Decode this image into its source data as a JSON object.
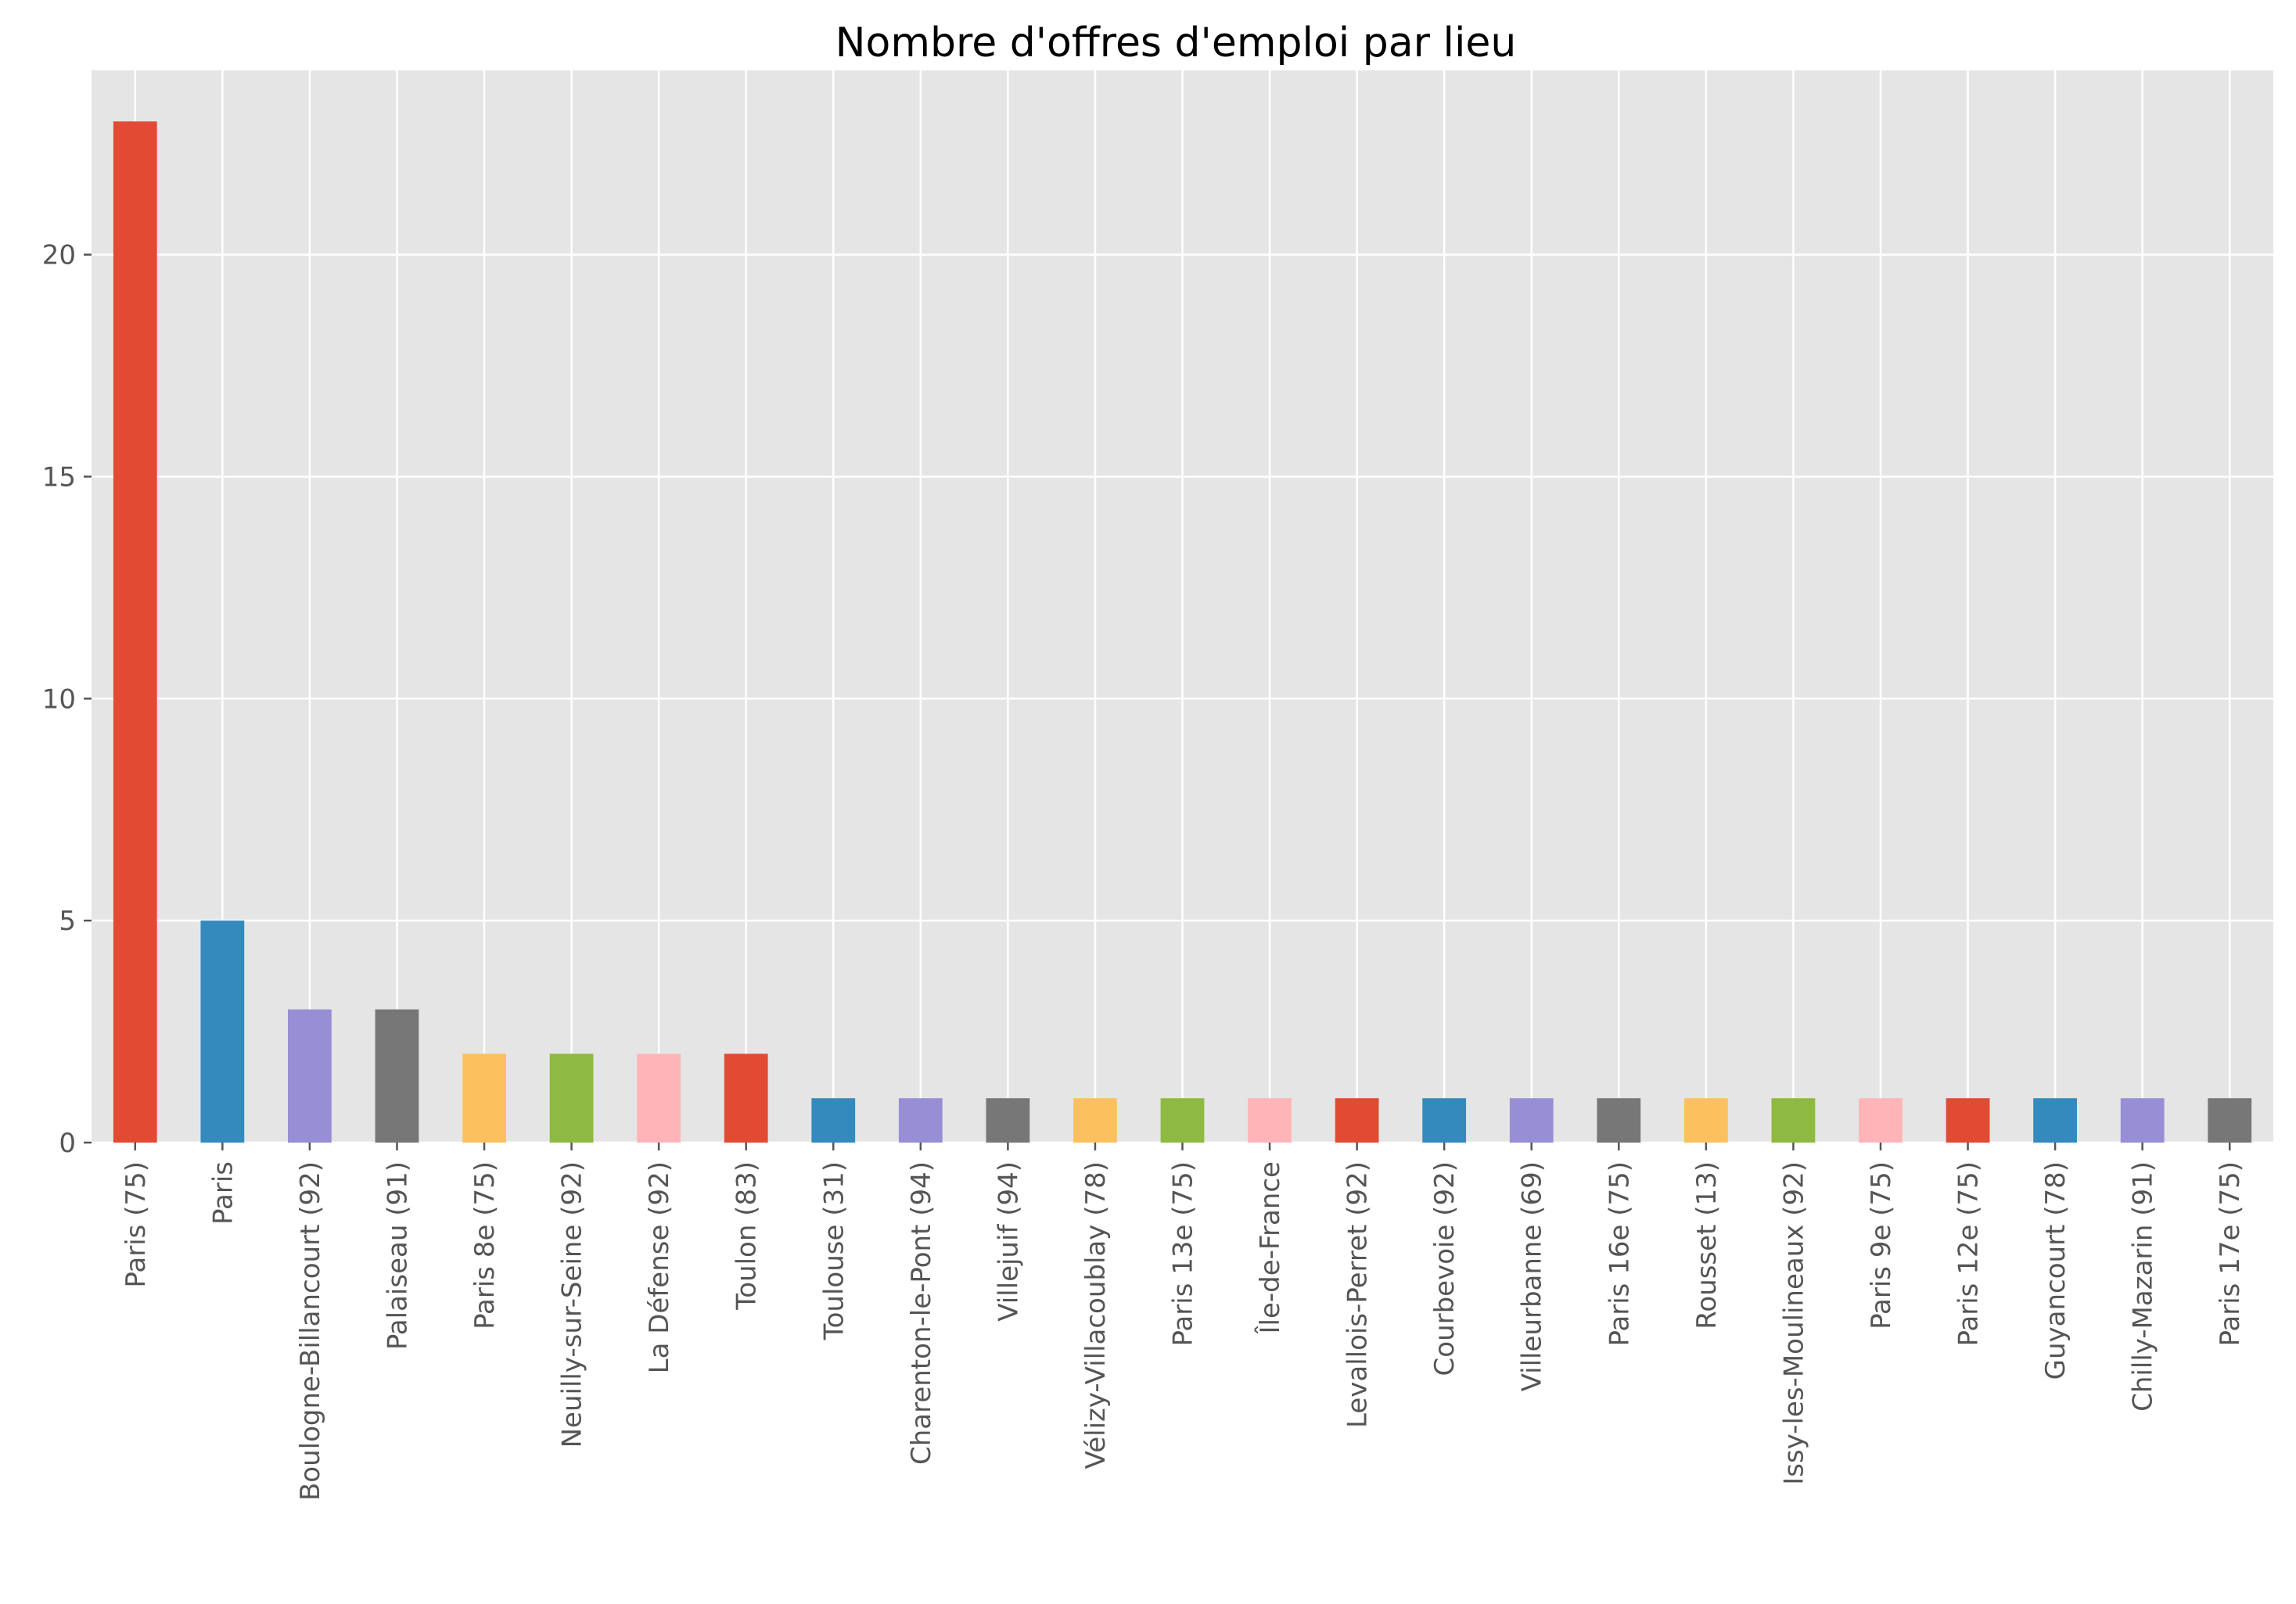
{
  "chart_data": {
    "type": "bar",
    "title": "Nombre d'offres d'emploi par lieu",
    "xlabel": "",
    "ylabel": "",
    "ylim": [
      0,
      24.15
    ],
    "yticks": [
      0,
      5,
      10,
      15,
      20
    ],
    "ytick_labels": [
      "0",
      "5",
      "10",
      "15",
      "20"
    ],
    "grid": true,
    "background": "#e5e5e5",
    "grid_color": "#ffffff",
    "palette": [
      "#e24a33",
      "#348abd",
      "#988ed5",
      "#777777",
      "#fbc15e",
      "#8eba42",
      "#ffb5b8"
    ],
    "categories": [
      "Paris (75)",
      "Paris",
      "Boulogne-Billancourt (92)",
      "Palaiseau (91)",
      "Paris 8e (75)",
      "Neuilly-sur-Seine (92)",
      "La Défense (92)",
      "Toulon (83)",
      "Toulouse (31)",
      "Charenton-le-Pont (94)",
      "Villejuif (94)",
      "Vélizy-Villacoublay (78)",
      "Paris 13e (75)",
      "Île-de-France",
      "Levallois-Perret (92)",
      "Courbevoie (92)",
      "Villeurbanne (69)",
      "Paris 16e (75)",
      "Rousset (13)",
      "Issy-les-Moulineaux (92)",
      "Paris 9e (75)",
      "Paris 12e (75)",
      "Guyancourt (78)",
      "Chilly-Mazarin (91)",
      "Paris 17e (75)"
    ],
    "values": [
      23,
      5,
      3,
      3,
      2,
      2,
      2,
      2,
      1,
      1,
      1,
      1,
      1,
      1,
      1,
      1,
      1,
      1,
      1,
      1,
      1,
      1,
      1,
      1,
      1
    ]
  }
}
